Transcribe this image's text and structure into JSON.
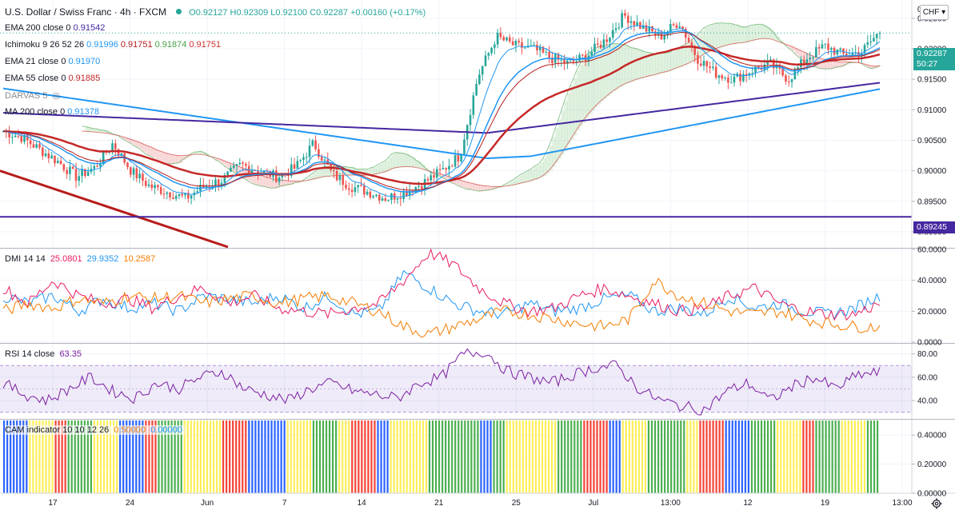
{
  "header": {
    "symbol": "U.S. Dollar / Swiss Franc · 4h · FXCM",
    "ohlc": "O0.92127 H0.92309 L0.92100 C0.92287 +0.00160 (+0.17%)"
  },
  "indicators": [
    {
      "name": "EMA 200 close 0",
      "values": [
        "0.91542"
      ],
      "colors": [
        "#4527a0"
      ]
    },
    {
      "name": "Ichimoku 9 26 52 26",
      "values": [
        "0.91996",
        "0.91751",
        "0.91874",
        "0.91751"
      ],
      "colors": [
        "#2196f3",
        "#b71c1c",
        "#43a047",
        "#d32f2f"
      ]
    },
    {
      "name": "EMA 21 close 0",
      "values": [
        "0.91970"
      ],
      "colors": [
        "#2196f3"
      ]
    },
    {
      "name": "EMA 55 close 0",
      "values": [
        "0.91885"
      ],
      "colors": [
        "#c62828"
      ]
    },
    {
      "name": "DARVAS 5",
      "values": [],
      "colors": []
    },
    {
      "name": "MA 200 close 0",
      "values": [
        "0.91378"
      ],
      "colors": [
        "#2196f3"
      ]
    }
  ],
  "panes": {
    "dmi": {
      "label": "DMI 14 14",
      "values": [
        "25.0801",
        "29.9352",
        "10.2587"
      ],
      "colors": [
        "#e91e63",
        "#2196f3",
        "#f57c00"
      ]
    },
    "rsi": {
      "label": "RSI 14 close",
      "values": [
        "63.35"
      ],
      "colors": [
        "#7b1fa2"
      ]
    },
    "cam": {
      "label": "CAM indicator 10 10 12 26",
      "values": [
        "0.50000",
        "0.00000"
      ],
      "colors": [
        "#f57c00",
        "#2196f3"
      ]
    }
  },
  "price_axis": {
    "currency": "CHF",
    "last_price": "0.92287",
    "countdown": "50:27",
    "level_label": "0.89245",
    "top_partial": "0."
  },
  "colors": {
    "up": "#26a69a",
    "down": "#ef5350",
    "ema200": "#4527a0",
    "ema21": "#2196f3",
    "ema55": "#c62828",
    "ma200": "#2196f3",
    "kumo_green": "#a5d6a7",
    "kumo_red": "#ef9a9a",
    "rsi": "#7b1fa2",
    "dmi_plus": "#2196f3",
    "dmi_minus": "#e91e63",
    "adx": "#f57c00"
  },
  "chart_data": [
    {
      "type": "candlestick",
      "title": "U.S. Dollar / Swiss Franc · 4h · FXCM",
      "ylim": [
        0.8875,
        0.928
      ],
      "y_ticks": [
        "0.92500",
        "0.92000",
        "0.91500",
        "0.91000",
        "0.90500",
        "0.90000",
        "0.89500",
        "0.89000"
      ],
      "x_ticks": [
        "17",
        "24",
        "Jun",
        "7",
        "14",
        "21",
        "25",
        "Jul",
        "13:00",
        "12",
        "19",
        "13:00"
      ],
      "horizontal_level": 0.89245,
      "approx_close_path": [
        0.9065,
        0.9055,
        0.9035,
        0.9015,
        0.899,
        0.9005,
        0.9045,
        0.9,
        0.8975,
        0.8965,
        0.8955,
        0.8975,
        0.8985,
        0.901,
        0.9,
        0.899,
        0.9005,
        0.9045,
        0.8995,
        0.8975,
        0.8965,
        0.8955,
        0.8965,
        0.898,
        0.9,
        0.9025,
        0.9155,
        0.922,
        0.9205,
        0.92,
        0.9185,
        0.9175,
        0.919,
        0.9215,
        0.9255,
        0.9235,
        0.922,
        0.9245,
        0.9185,
        0.916,
        0.915,
        0.9165,
        0.9175,
        0.915,
        0.9185,
        0.9205,
        0.919,
        0.9195,
        0.9228
      ]
    },
    {
      "type": "line",
      "title": "DMI 14 14",
      "ylim": [
        0,
        60
      ],
      "y_ticks": [
        "60.0000",
        "40.0000",
        "20.0000",
        "0.0000"
      ],
      "series": [
        {
          "name": "",
          "values": [
            30,
            25,
            30,
            20,
            28,
            22,
            25,
            20,
            30,
            28,
            25,
            30,
            22,
            30,
            18,
            20,
            45,
            35,
            25,
            20,
            18,
            25,
            20,
            22,
            28,
            30,
            20,
            22,
            18,
            30,
            22,
            25,
            20,
            18,
            22,
            30
          ]
        },
        {
          "name": "",
          "values": [
            35,
            25,
            40,
            30,
            25,
            28,
            22,
            30,
            35,
            25,
            30,
            22,
            20,
            18,
            22,
            25,
            40,
            58,
            50,
            35,
            25,
            20,
            22,
            30,
            35,
            30,
            25,
            20,
            22,
            30,
            35,
            25,
            20,
            18,
            18,
            25
          ]
        },
        {
          "name": "",
          "values": [
            20,
            25,
            22,
            28,
            25,
            30,
            28,
            30,
            25,
            28,
            30,
            25,
            28,
            30,
            25,
            20,
            10,
            5,
            10,
            15,
            20,
            18,
            15,
            12,
            10,
            15,
            40,
            30,
            25,
            20,
            18,
            20,
            15,
            12,
            10,
            10
          ]
        }
      ]
    },
    {
      "type": "line",
      "title": "RSI 14 close",
      "ylim": [
        25,
        88
      ],
      "y_ticks": [
        "80.00",
        "60.00",
        "40.00"
      ],
      "band": [
        30,
        70
      ],
      "series": [
        {
          "name": "",
          "values": [
            55,
            45,
            40,
            50,
            60,
            48,
            42,
            55,
            50,
            60,
            65,
            50,
            45,
            40,
            50,
            55,
            48,
            45,
            42,
            55,
            60,
            80,
            82,
            65,
            60,
            55,
            62,
            68,
            70,
            50,
            40,
            35,
            32,
            48,
            55,
            40,
            52,
            60,
            50,
            62,
            64
          ]
        }
      ]
    },
    {
      "type": "bar",
      "title": "CAM indicator 10 10 12 26",
      "ylim": [
        0,
        0.5
      ],
      "y_ticks": [
        "0.40000",
        "0.20000",
        "0.00000"
      ],
      "legend_colors": {
        "blue": "#2962ff",
        "yellow": "#ffee58",
        "red": "#f44336",
        "green": "#4caf50"
      },
      "color_sequence": [
        "blue",
        "blue",
        "yellow",
        "yellow",
        "red",
        "green",
        "green",
        "yellow",
        "yellow",
        "blue",
        "blue",
        "red",
        "green",
        "green",
        "yellow",
        "yellow",
        "yellow",
        "red",
        "red",
        "blue",
        "blue",
        "blue",
        "yellow",
        "yellow",
        "green",
        "green",
        "yellow",
        "red",
        "red",
        "blue",
        "yellow",
        "yellow",
        "yellow",
        "green",
        "green",
        "green",
        "green",
        "blue",
        "green",
        "yellow",
        "yellow",
        "yellow",
        "yellow",
        "green",
        "green",
        "red",
        "red",
        "blue",
        "yellow",
        "yellow",
        "green",
        "green",
        "green",
        "yellow",
        "red",
        "red",
        "blue",
        "blue",
        "green",
        "green",
        "yellow",
        "yellow",
        "red",
        "green",
        "green",
        "yellow",
        "yellow",
        "green"
      ]
    }
  ]
}
